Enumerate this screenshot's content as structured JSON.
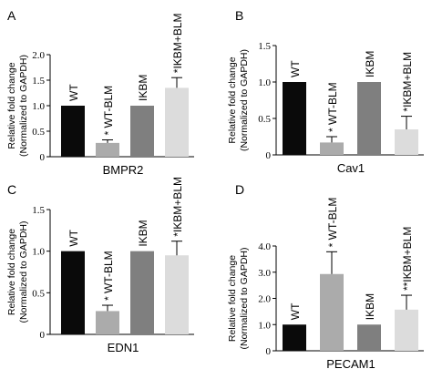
{
  "colors": {
    "wt": "#0a0a0a",
    "wt_blm": "#ababab",
    "ikbm": "#7f7f7f",
    "ikbm_blm": "#dcdcdc",
    "axis": "#000000"
  },
  "ylabel_line1": "Relative fold change",
  "ylabel_line2": "(Normalized to GAPDH)",
  "chart_data": [
    {
      "type": "bar",
      "panel": "A",
      "title": "",
      "xlabel": "BMPR2",
      "ylabel": "Relative fold change (Normalized to GAPDH)",
      "ylim": [
        0,
        2.0
      ],
      "yticks": [
        0,
        0.5,
        1.0,
        1.5,
        2.0
      ],
      "ytick_labels": [
        "0",
        "0.5",
        "1.0",
        "1.5",
        "2.0"
      ],
      "categories": [
        "WT",
        "WT-BLM",
        "IKBM",
        "IKBM+BLM"
      ],
      "values": [
        1.0,
        0.27,
        1.0,
        1.35
      ],
      "errors": [
        0,
        0.06,
        0,
        0.2
      ],
      "bar_labels": [
        "WT",
        "* WT-BLM",
        "IKBM",
        "*IKBM+BLM"
      ],
      "grid": false
    },
    {
      "type": "bar",
      "panel": "B",
      "title": "",
      "xlabel": "Cav1",
      "ylabel": "Relative fold change (Normalized to GAPDH)",
      "ylim": [
        0,
        1.5
      ],
      "yticks": [
        0,
        0.5,
        1.0,
        1.5
      ],
      "ytick_labels": [
        "0",
        "0.5",
        "1.0",
        "1.5"
      ],
      "categories": [
        "WT",
        "WT-BLM",
        "IKBM",
        "IKBM+BLM"
      ],
      "values": [
        1.0,
        0.17,
        1.0,
        0.35
      ],
      "errors": [
        0,
        0.08,
        0,
        0.18
      ],
      "bar_labels": [
        "WT",
        "* WT-BLM",
        "IKBM",
        "*IKBM+BLM"
      ],
      "grid": false
    },
    {
      "type": "bar",
      "panel": "C",
      "title": "",
      "xlabel": "EDN1",
      "ylabel": "Relative fold change (Normalized to GAPDH)",
      "ylim": [
        0,
        1.5
      ],
      "yticks": [
        0,
        0.5,
        1.0,
        1.5
      ],
      "ytick_labels": [
        "0",
        "0.5",
        "1.0",
        "1.5"
      ],
      "categories": [
        "WT",
        "WT-BLM",
        "IKBM",
        "IKBM+BLM"
      ],
      "values": [
        1.0,
        0.28,
        1.0,
        0.95
      ],
      "errors": [
        0,
        0.07,
        0,
        0.17
      ],
      "bar_labels": [
        "WT",
        "* WT-BLM",
        "IKBM",
        "*IKBM+BLM"
      ],
      "grid": false
    },
    {
      "type": "bar",
      "panel": "D",
      "title": "",
      "xlabel": "PECAM1",
      "ylabel": "Relative fold change (Normalized to GAPDH)",
      "ylim": [
        0,
        4.0
      ],
      "yticks": [
        0,
        1.0,
        2.0,
        3.0,
        4.0
      ],
      "ytick_labels": [
        "0",
        "1.0",
        "2.0",
        "3.0",
        "4.0"
      ],
      "categories": [
        "WT",
        "WT-BLM",
        "IKBM",
        "IKBM+BLM"
      ],
      "values": [
        1.0,
        2.93,
        1.0,
        1.57
      ],
      "errors": [
        0,
        0.85,
        0,
        0.55
      ],
      "bar_labels": [
        "WT",
        "* WT-BLM",
        "IKBM",
        "**IKBM+BLM"
      ],
      "grid": false
    }
  ]
}
